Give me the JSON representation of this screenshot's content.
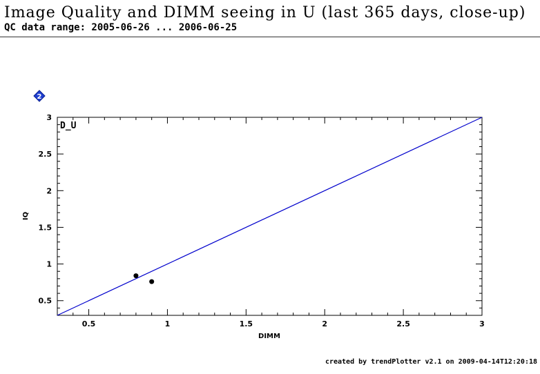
{
  "header": {
    "title": "Image Quality and DIMM seeing in U (last 365 days, close-up)",
    "subtitle": "QC data range: 2005-06-26 ... 2006-06-25"
  },
  "footer": {
    "text": "created by trendPlotter v2.1 on 2009-04-14T12:20:18"
  },
  "badge": {
    "label": "2",
    "icon": "blue-diamond-badge-icon",
    "color": "#1f3fd1"
  },
  "chart_data": {
    "type": "scatter",
    "panel_label": "D_U",
    "xlabel": "DIMM",
    "ylabel": "IQ",
    "xlim": [
      0.3,
      3
    ],
    "ylim": [
      0.3,
      3
    ],
    "x_ticks": [
      0.5,
      1,
      1.5,
      2,
      2.5,
      3
    ],
    "x_tick_labels": [
      "0.5",
      "1",
      "1.5",
      "2",
      "2.5",
      "3"
    ],
    "y_ticks": [
      0.5,
      1,
      1.5,
      2,
      2.5,
      3
    ],
    "y_tick_labels": [
      "0.5",
      "1",
      "1.5",
      "2",
      "2.5",
      "3"
    ],
    "points": [
      {
        "x": 0.8,
        "y": 0.84
      },
      {
        "x": 0.9,
        "y": 0.76
      }
    ],
    "reference_line": {
      "x": [
        0.3,
        3
      ],
      "y": [
        0.3,
        3
      ],
      "color": "#0000cc"
    },
    "point_color": "#000000",
    "grid": false
  }
}
